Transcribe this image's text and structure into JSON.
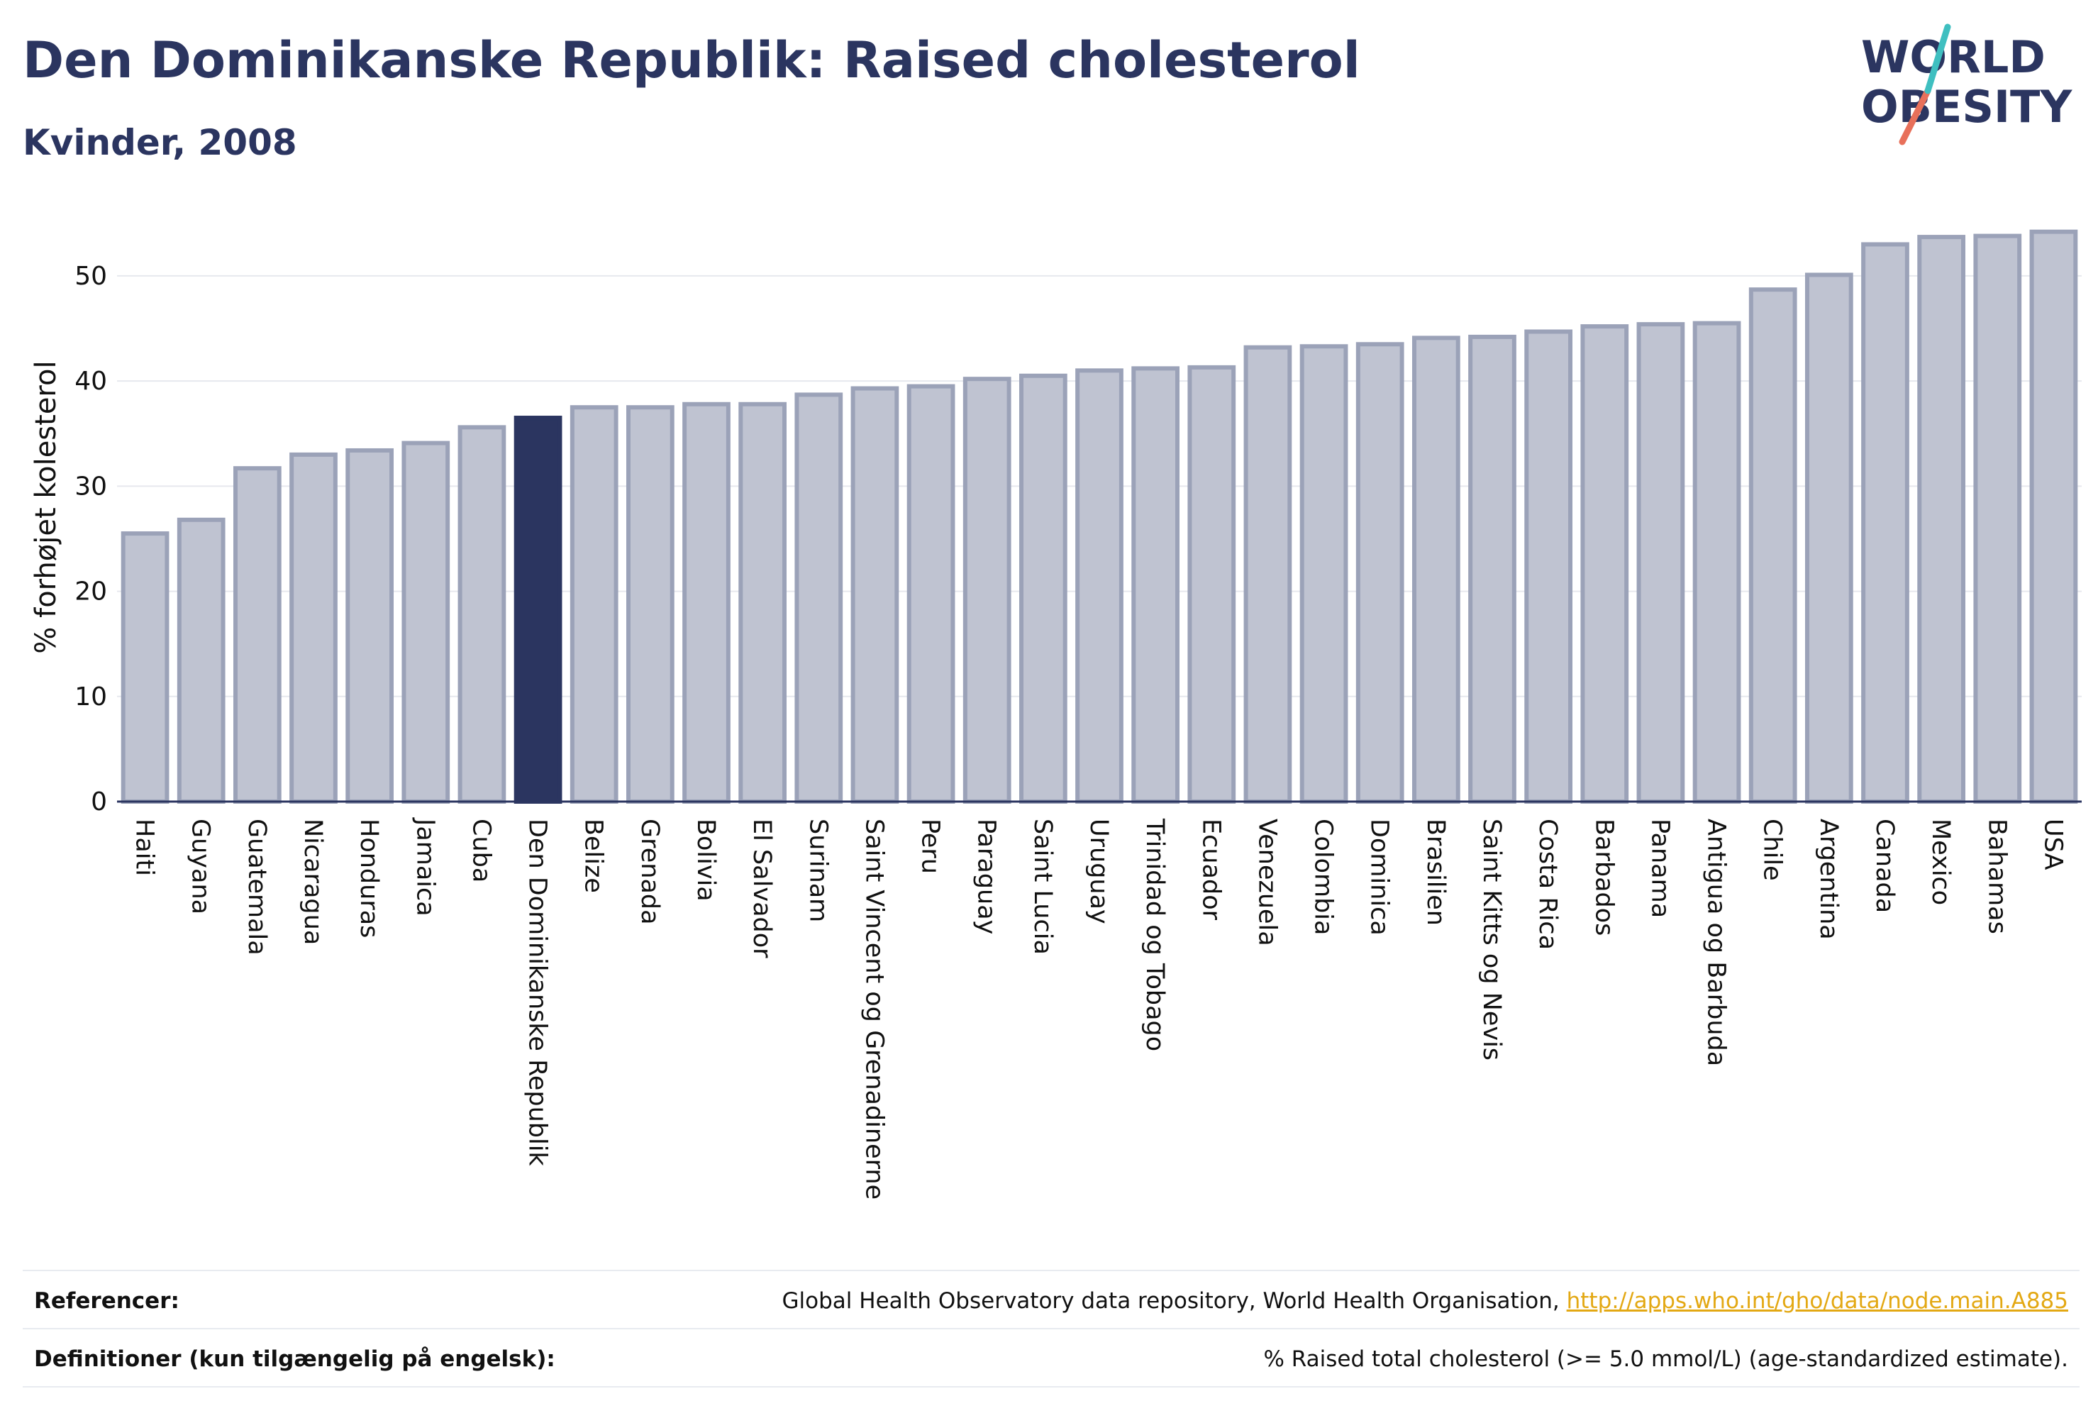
{
  "title": "Den Dominikanske Republik: Raised cholesterol",
  "subtitle": "Kvinder, 2008",
  "logo": {
    "line1": "WORLD",
    "line2": "OBESITY"
  },
  "colors": {
    "highlight": "#2b3560",
    "bar": "#bfc3d1",
    "bar_border": "#9ba2b8",
    "grid": "#e6e8ee",
    "link": "#e3a813"
  },
  "chart_data": {
    "type": "bar",
    "ylabel": "% forhøjet kolesterol",
    "ylim": [
      0,
      56
    ],
    "yticks": [
      0,
      10,
      20,
      30,
      40,
      50
    ],
    "highlight": "Den Dominikanske Republik",
    "categories": [
      "Haiti",
      "Guyana",
      "Guatemala",
      "Nicaragua",
      "Honduras",
      "Jamaica",
      "Cuba",
      "Den Dominikanske Republik",
      "Belize",
      "Grenada",
      "Bolivia",
      "El Salvador",
      "Surinam",
      "Saint Vincent og Grenadinerne",
      "Peru",
      "Paraguay",
      "Saint Lucia",
      "Uruguay",
      "Trinidad og Tobago",
      "Ecuador",
      "Venezuela",
      "Colombia",
      "Dominica",
      "Brasilien",
      "Saint Kitts og Nevis",
      "Costa Rica",
      "Barbados",
      "Panama",
      "Antigua og Barbuda",
      "Chile",
      "Argentina",
      "Canada",
      "Mexico",
      "Bahamas",
      "USA"
    ],
    "values": [
      25.5,
      26.8,
      31.7,
      33.0,
      33.4,
      34.1,
      35.6,
      36.5,
      37.5,
      37.5,
      37.8,
      37.8,
      38.7,
      39.3,
      39.5,
      40.2,
      40.5,
      41.0,
      41.2,
      41.3,
      43.2,
      43.3,
      43.5,
      44.1,
      44.2,
      44.7,
      45.2,
      45.4,
      45.5,
      48.7,
      50.1,
      53.0,
      53.7,
      53.8,
      54.2
    ]
  },
  "footer": {
    "references_label": "Referencer:",
    "references_text": "Global Health Observatory data repository, World Health Organisation, ",
    "references_link": "http://apps.who.int/gho/data/node.main.A885",
    "definitions_label": "Definitioner (kun tilgængelig på engelsk):",
    "definitions_text": "% Raised total cholesterol (>= 5.0 mmol/L) (age-standardized estimate)."
  }
}
